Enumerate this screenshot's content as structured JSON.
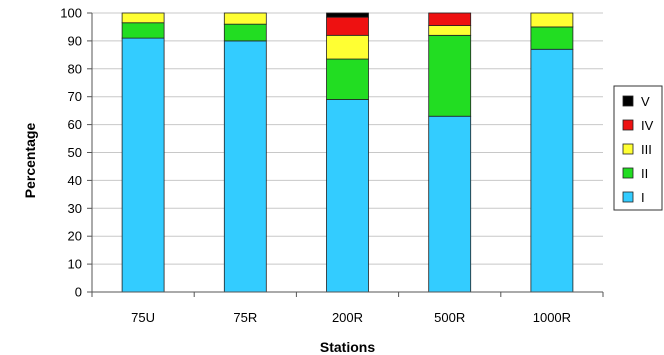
{
  "chart_data": {
    "type": "bar",
    "stacked": true,
    "xlabel": "Stations",
    "ylabel": "Percentage",
    "ylim": [
      0,
      100
    ],
    "yticks": [
      0,
      10,
      20,
      30,
      40,
      50,
      60,
      70,
      80,
      90,
      100
    ],
    "categories": [
      "75U",
      "75R",
      "200R",
      "500R",
      "1000R"
    ],
    "series": [
      {
        "name": "I",
        "color": "#33ccff",
        "values": [
          91,
          90,
          69,
          63,
          87
        ]
      },
      {
        "name": "II",
        "color": "#22dd22",
        "values": [
          5.5,
          6,
          14.5,
          29,
          8
        ]
      },
      {
        "name": "III",
        "color": "#ffff33",
        "values": [
          3.5,
          4,
          8.5,
          3.5,
          5
        ]
      },
      {
        "name": "IV",
        "color": "#ee1111",
        "values": [
          0,
          0,
          6.5,
          4.5,
          0
        ]
      },
      {
        "name": "V",
        "color": "#000000",
        "values": [
          0,
          0,
          1.5,
          0,
          0
        ]
      }
    ],
    "grid": true,
    "legend_position": "right",
    "legend_order": [
      "V",
      "IV",
      "III",
      "II",
      "I"
    ]
  }
}
